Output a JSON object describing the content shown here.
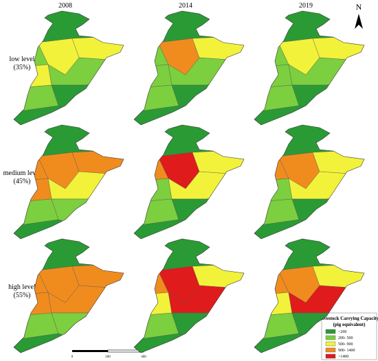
{
  "columns": [
    "2008",
    "2014",
    "2019"
  ],
  "rows": [
    {
      "label": "low level",
      "share": "(35%)"
    },
    {
      "label": "medium level",
      "share": "(45%)"
    },
    {
      "label": "high level",
      "share": "(55%)"
    }
  ],
  "north": "N",
  "legend": {
    "title": "Livestock Carrying Capacity",
    "subtitle": "(pig equivalent)",
    "items": [
      "<200",
      "200- 500",
      "500- 900",
      "900- 1400",
      ">1400"
    ]
  },
  "scale_bar": {
    "labels": [
      "0",
      "200",
      "400"
    ]
  }
}
